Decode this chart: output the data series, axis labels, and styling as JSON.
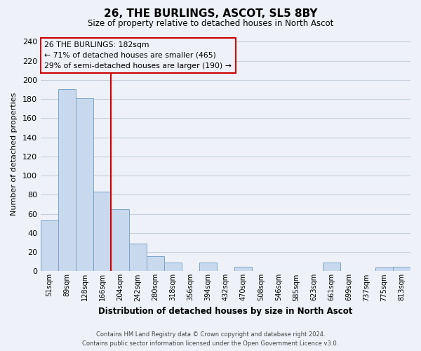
{
  "title": "26, THE BURLINGS, ASCOT, SL5 8BY",
  "subtitle": "Size of property relative to detached houses in North Ascot",
  "xlabel": "Distribution of detached houses by size in North Ascot",
  "ylabel": "Number of detached properties",
  "categories": [
    "51sqm",
    "89sqm",
    "128sqm",
    "166sqm",
    "204sqm",
    "242sqm",
    "280sqm",
    "318sqm",
    "356sqm",
    "394sqm",
    "432sqm",
    "470sqm",
    "508sqm",
    "546sqm",
    "585sqm",
    "623sqm",
    "661sqm",
    "699sqm",
    "737sqm",
    "775sqm",
    "813sqm"
  ],
  "values": [
    53,
    190,
    181,
    83,
    65,
    29,
    16,
    9,
    0,
    9,
    0,
    5,
    0,
    0,
    0,
    0,
    9,
    0,
    0,
    4,
    5
  ],
  "bar_color": "#c8d9ee",
  "bar_edge_color": "#7ba3c8",
  "vline_color": "#cc0000",
  "annotation_title": "26 THE BURLINGS: 182sqm",
  "annotation_line1": "← 71% of detached houses are smaller (465)",
  "annotation_line2": "29% of semi-detached houses are larger (190) →",
  "annotation_box_color": "#cc0000",
  "ylim": [
    0,
    245
  ],
  "yticks": [
    0,
    20,
    40,
    60,
    80,
    100,
    120,
    140,
    160,
    180,
    200,
    220,
    240
  ],
  "footer1": "Contains HM Land Registry data © Crown copyright and database right 2024.",
  "footer2": "Contains public sector information licensed under the Open Government Licence v3.0.",
  "background_color": "#eef2f8",
  "grid_color": "#c8d0dc"
}
